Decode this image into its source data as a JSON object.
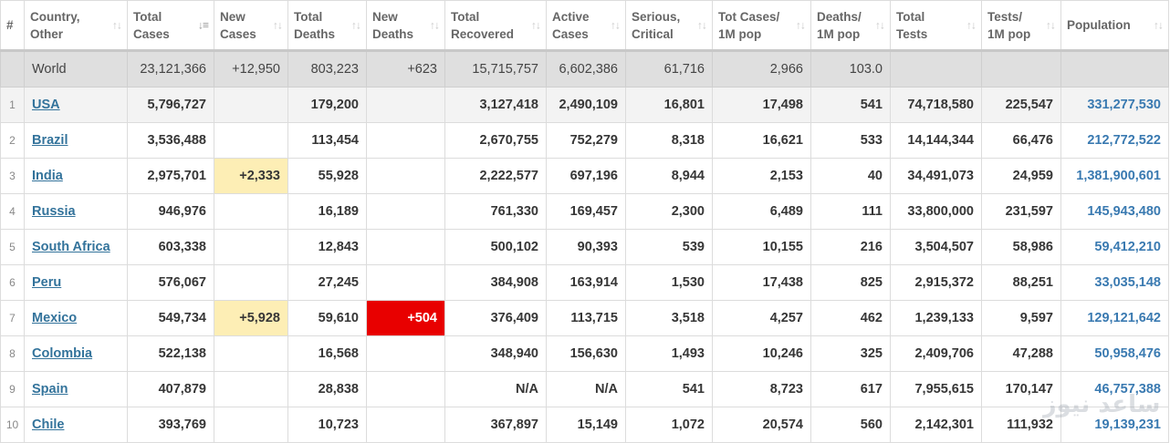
{
  "headers": [
    {
      "l1": "#",
      "l2": "",
      "sortable": false
    },
    {
      "l1": "Country,",
      "l2": "Other",
      "sortable": true
    },
    {
      "l1": "Total",
      "l2": "Cases",
      "sortable": true,
      "active": true
    },
    {
      "l1": "New",
      "l2": "Cases",
      "sortable": true
    },
    {
      "l1": "Total",
      "l2": "Deaths",
      "sortable": true
    },
    {
      "l1": "New",
      "l2": "Deaths",
      "sortable": true
    },
    {
      "l1": "Total",
      "l2": "Recovered",
      "sortable": true
    },
    {
      "l1": "Active",
      "l2": "Cases",
      "sortable": true
    },
    {
      "l1": "Serious,",
      "l2": "Critical",
      "sortable": true
    },
    {
      "l1": "Tot Cases/",
      "l2": "1M pop",
      "sortable": true
    },
    {
      "l1": "Deaths/",
      "l2": "1M pop",
      "sortable": true
    },
    {
      "l1": "Total",
      "l2": "Tests",
      "sortable": true
    },
    {
      "l1": "Tests/",
      "l2": "1M pop",
      "sortable": true
    },
    {
      "l1": "Population",
      "l2": "",
      "sortable": true
    }
  ],
  "world": {
    "label": "World",
    "total_cases": "23,121,366",
    "new_cases": "+12,950",
    "total_deaths": "803,223",
    "new_deaths": "+623",
    "total_recovered": "15,715,757",
    "active_cases": "6,602,386",
    "serious": "61,716",
    "cases_per_1m": "2,966",
    "deaths_per_1m": "103.0",
    "total_tests": "",
    "tests_per_1m": "",
    "population": ""
  },
  "rows": [
    {
      "idx": "1",
      "country": "USA",
      "total_cases": "5,796,727",
      "new_cases": "",
      "total_deaths": "179,200",
      "new_deaths": "",
      "total_recovered": "3,127,418",
      "active_cases": "2,490,109",
      "serious": "16,801",
      "cases_per_1m": "17,498",
      "deaths_per_1m": "541",
      "total_tests": "74,718,580",
      "tests_per_1m": "225,547",
      "population": "331,277,530"
    },
    {
      "idx": "2",
      "country": "Brazil",
      "total_cases": "3,536,488",
      "new_cases": "",
      "total_deaths": "113,454",
      "new_deaths": "",
      "total_recovered": "2,670,755",
      "active_cases": "752,279",
      "serious": "8,318",
      "cases_per_1m": "16,621",
      "deaths_per_1m": "533",
      "total_tests": "14,144,344",
      "tests_per_1m": "66,476",
      "population": "212,772,522"
    },
    {
      "idx": "3",
      "country": "India",
      "total_cases": "2,975,701",
      "new_cases": "+2,333",
      "total_deaths": "55,928",
      "new_deaths": "",
      "total_recovered": "2,222,577",
      "active_cases": "697,196",
      "serious": "8,944",
      "cases_per_1m": "2,153",
      "deaths_per_1m": "40",
      "total_tests": "34,491,073",
      "tests_per_1m": "24,959",
      "population": "1,381,900,601"
    },
    {
      "idx": "4",
      "country": "Russia",
      "total_cases": "946,976",
      "new_cases": "",
      "total_deaths": "16,189",
      "new_deaths": "",
      "total_recovered": "761,330",
      "active_cases": "169,457",
      "serious": "2,300",
      "cases_per_1m": "6,489",
      "deaths_per_1m": "111",
      "total_tests": "33,800,000",
      "tests_per_1m": "231,597",
      "population": "145,943,480"
    },
    {
      "idx": "5",
      "country": "South Africa",
      "total_cases": "603,338",
      "new_cases": "",
      "total_deaths": "12,843",
      "new_deaths": "",
      "total_recovered": "500,102",
      "active_cases": "90,393",
      "serious": "539",
      "cases_per_1m": "10,155",
      "deaths_per_1m": "216",
      "total_tests": "3,504,507",
      "tests_per_1m": "58,986",
      "population": "59,412,210"
    },
    {
      "idx": "6",
      "country": "Peru",
      "total_cases": "576,067",
      "new_cases": "",
      "total_deaths": "27,245",
      "new_deaths": "",
      "total_recovered": "384,908",
      "active_cases": "163,914",
      "serious": "1,530",
      "cases_per_1m": "17,438",
      "deaths_per_1m": "825",
      "total_tests": "2,915,372",
      "tests_per_1m": "88,251",
      "population": "33,035,148"
    },
    {
      "idx": "7",
      "country": "Mexico",
      "total_cases": "549,734",
      "new_cases": "+5,928",
      "total_deaths": "59,610",
      "new_deaths": "+504",
      "total_recovered": "376,409",
      "active_cases": "113,715",
      "serious": "3,518",
      "cases_per_1m": "4,257",
      "deaths_per_1m": "462",
      "total_tests": "1,239,133",
      "tests_per_1m": "9,597",
      "population": "129,121,642"
    },
    {
      "idx": "8",
      "country": "Colombia",
      "total_cases": "522,138",
      "new_cases": "",
      "total_deaths": "16,568",
      "new_deaths": "",
      "total_recovered": "348,940",
      "active_cases": "156,630",
      "serious": "1,493",
      "cases_per_1m": "10,246",
      "deaths_per_1m": "325",
      "total_tests": "2,409,706",
      "tests_per_1m": "47,288",
      "population": "50,958,476"
    },
    {
      "idx": "9",
      "country": "Spain",
      "total_cases": "407,879",
      "new_cases": "",
      "total_deaths": "28,838",
      "new_deaths": "",
      "total_recovered": "N/A",
      "active_cases": "N/A",
      "serious": "541",
      "cases_per_1m": "8,723",
      "deaths_per_1m": "617",
      "total_tests": "7,955,615",
      "tests_per_1m": "170,147",
      "population": "46,757,388"
    },
    {
      "idx": "10",
      "country": "Chile",
      "total_cases": "393,769",
      "new_cases": "",
      "total_deaths": "10,723",
      "new_deaths": "",
      "total_recovered": "367,897",
      "active_cases": "15,149",
      "serious": "1,072",
      "cases_per_1m": "20,574",
      "deaths_per_1m": "560",
      "total_tests": "2,142,301",
      "tests_per_1m": "111,932",
      "population": "19,139,231"
    }
  ],
  "watermark_text": "ساعد نیوز",
  "icons": {
    "sort": "sort-arrows-icon"
  },
  "colors": {
    "link": "#33739b",
    "new_cases_bg": "#fdeeb5",
    "new_deaths_bg": "#e80000",
    "world_bg": "#dfdfdf"
  }
}
